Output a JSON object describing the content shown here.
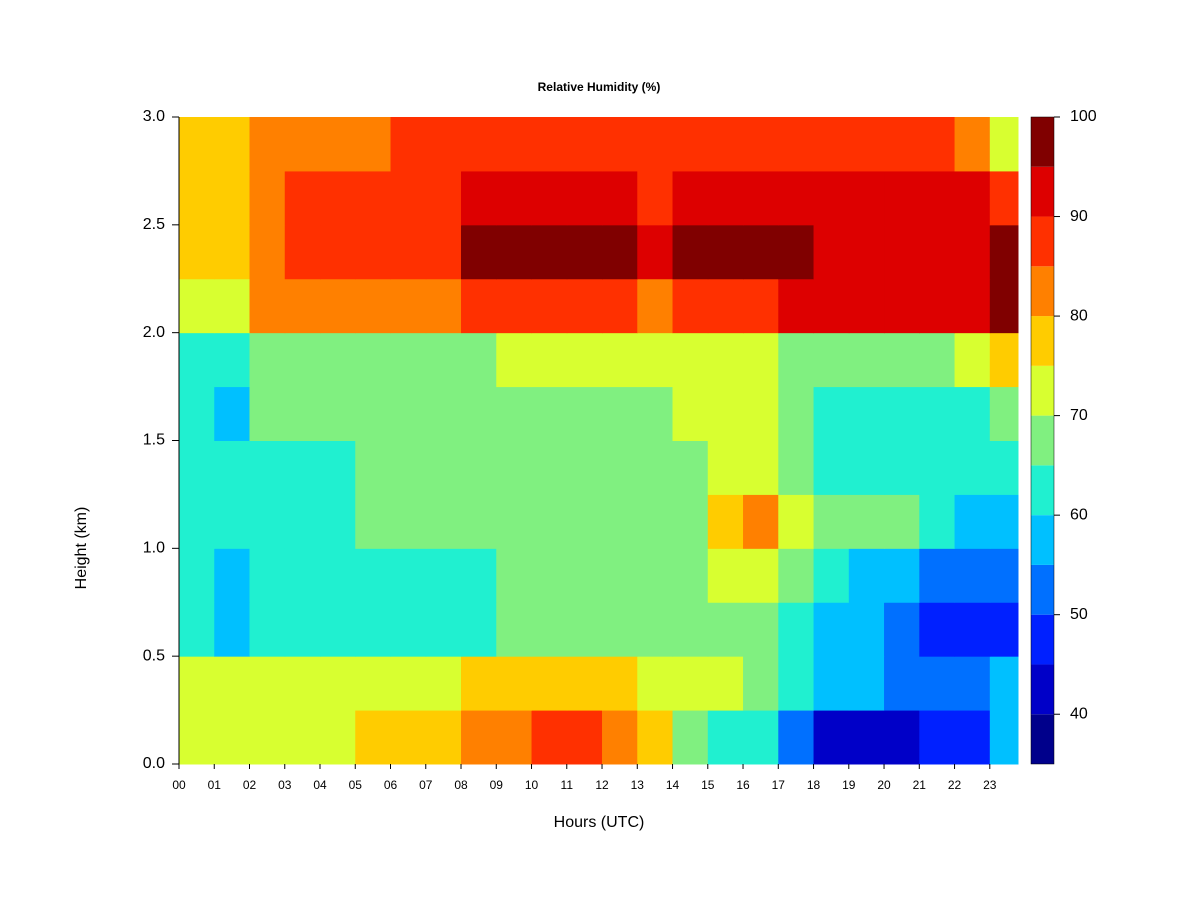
{
  "chart_data": {
    "type": "heatmap",
    "title": "Relative Humidity (%)",
    "x_label": "Hours (UTC)",
    "y_label": "Height (km)",
    "xlim": [
      0,
      23.8
    ],
    "xticks": [
      {
        "value": 0,
        "label": "00"
      },
      {
        "value": 1,
        "label": "01"
      },
      {
        "value": 2,
        "label": "02"
      },
      {
        "value": 3,
        "label": "03"
      },
      {
        "value": 4,
        "label": "04"
      },
      {
        "value": 5,
        "label": "05"
      },
      {
        "value": 6,
        "label": "06"
      },
      {
        "value": 7,
        "label": "07"
      },
      {
        "value": 8,
        "label": "08"
      },
      {
        "value": 9,
        "label": "09"
      },
      {
        "value": 10,
        "label": "10"
      },
      {
        "value": 11,
        "label": "11"
      },
      {
        "value": 12,
        "label": "12"
      },
      {
        "value": 13,
        "label": "13"
      },
      {
        "value": 14,
        "label": "14"
      },
      {
        "value": 15,
        "label": "15"
      },
      {
        "value": 16,
        "label": "16"
      },
      {
        "value": 17,
        "label": "17"
      },
      {
        "value": 18,
        "label": "18"
      },
      {
        "value": 19,
        "label": "19"
      },
      {
        "value": 20,
        "label": "20"
      },
      {
        "value": 21,
        "label": "21"
      },
      {
        "value": 22,
        "label": "22"
      },
      {
        "value": 23,
        "label": "23"
      }
    ],
    "ylim": [
      0,
      3
    ],
    "yticks": [
      {
        "value": 0,
        "label": "0.0"
      },
      {
        "value": 0.5,
        "label": "0.5"
      },
      {
        "value": 1,
        "label": "1.0"
      },
      {
        "value": 1.5,
        "label": "1.5"
      },
      {
        "value": 2,
        "label": "2.0"
      },
      {
        "value": 2.5,
        "label": "2.5"
      },
      {
        "value": 3,
        "label": "3.0"
      }
    ],
    "xbins": [
      0,
      1,
      2,
      3,
      4,
      5,
      6,
      7,
      8,
      9,
      10,
      11,
      12,
      13,
      14,
      15,
      16,
      17,
      18,
      19,
      20,
      21,
      22,
      23,
      23.8
    ],
    "ybins": [
      0,
      0.25,
      0.5,
      0.75,
      1,
      1.25,
      1.5,
      1.75,
      2,
      2.25,
      2.5,
      2.75,
      3
    ],
    "z": [
      [
        75,
        75,
        75,
        75,
        75,
        78,
        78,
        80,
        83,
        83,
        86,
        86,
        83,
        78,
        70,
        65,
        62,
        55,
        45,
        45,
        45,
        48,
        50,
        58
      ],
      [
        72,
        72,
        72,
        72,
        72,
        75,
        75,
        73,
        77,
        77,
        80,
        80,
        78,
        75,
        73,
        72,
        68,
        62,
        57,
        57,
        55,
        55,
        55,
        58
      ],
      [
        62,
        58,
        62,
        62,
        62,
        65,
        65,
        65,
        65,
        67,
        67,
        67,
        67,
        67,
        68,
        67,
        67,
        65,
        58,
        57,
        52,
        50,
        48,
        50
      ],
      [
        63,
        60,
        62,
        62,
        62,
        63,
        65,
        65,
        65,
        67,
        67,
        67,
        67,
        67,
        70,
        75,
        75,
        68,
        62,
        60,
        57,
        55,
        55,
        55
      ],
      [
        65,
        65,
        65,
        65,
        65,
        67,
        67,
        67,
        67,
        68,
        68,
        68,
        68,
        68,
        70,
        78,
        82,
        72,
        67,
        67,
        68,
        62,
        60,
        60
      ],
      [
        65,
        65,
        65,
        65,
        65,
        66,
        66,
        66,
        66,
        67,
        67,
        67,
        67,
        67,
        68,
        72,
        72,
        66,
        63,
        63,
        63,
        62,
        62,
        63
      ],
      [
        62,
        60,
        68,
        68,
        68,
        68,
        68,
        68,
        68,
        70,
        70,
        70,
        70,
        70,
        72,
        75,
        75,
        66,
        63,
        63,
        63,
        63,
        65,
        68
      ],
      [
        63,
        62,
        68,
        68,
        68,
        70,
        70,
        70,
        70,
        72,
        72,
        72,
        72,
        72,
        72,
        73,
        73,
        70,
        68,
        68,
        68,
        70,
        72,
        80
      ],
      [
        75,
        73,
        82,
        82,
        82,
        82,
        83,
        83,
        90,
        90,
        90,
        90,
        90,
        85,
        90,
        90,
        90,
        92,
        92,
        92,
        92,
        92,
        93,
        96
      ],
      [
        78,
        78,
        85,
        88,
        88,
        88,
        90,
        90,
        96,
        96,
        96,
        96,
        96,
        92,
        97,
        97,
        97,
        97,
        95,
        95,
        95,
        95,
        95,
        96
      ],
      [
        77,
        77,
        83,
        87,
        87,
        87,
        88,
        88,
        93,
        93,
        93,
        93,
        93,
        90,
        94,
        94,
        94,
        94,
        93,
        93,
        93,
        93,
        92,
        90
      ],
      [
        76,
        76,
        82,
        85,
        85,
        85,
        87,
        87,
        90,
        90,
        90,
        90,
        90,
        87,
        90,
        90,
        90,
        90,
        90,
        90,
        90,
        90,
        85,
        75
      ]
    ],
    "colorbar": {
      "lim": [
        35,
        100
      ],
      "levels": [
        35,
        40,
        45,
        50,
        55,
        60,
        65,
        70,
        75,
        80,
        85,
        90,
        95,
        100
      ],
      "colors": [
        "#00008b",
        "#0000c8",
        "#0020ff",
        "#0070ff",
        "#00c0ff",
        "#20f0d0",
        "#80f080",
        "#d8ff30",
        "#ffcc00",
        "#ff8000",
        "#ff3000",
        "#dd0000",
        "#800000"
      ],
      "ticks": [
        40,
        50,
        60,
        70,
        80,
        90,
        100
      ]
    }
  }
}
